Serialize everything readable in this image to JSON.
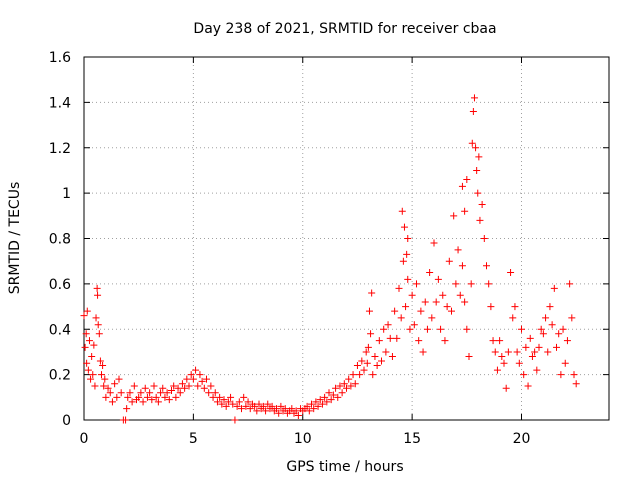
{
  "chart_data": {
    "type": "scatter",
    "title": "Day 238 of 2021, SRMTID for receiver cbaa",
    "xlabel": "GPS time / hours",
    "ylabel": "SRMTID / TECUs",
    "xlim": [
      0,
      24
    ],
    "ylim": [
      0,
      1.6
    ],
    "grid": true,
    "marker": "+",
    "color": "#ff0000",
    "x_ticks": [
      0,
      5,
      10,
      15,
      20
    ],
    "x_tick_labels": [
      "0",
      "5",
      "10",
      "15",
      "20"
    ],
    "y_ticks": [
      0,
      0.2,
      0.4,
      0.6,
      0.8,
      1.0,
      1.2,
      1.4,
      1.6
    ],
    "y_tick_labels": [
      "0",
      "0.2",
      "0.4",
      "0.6",
      "0.8",
      "1",
      "1.2",
      "1.4",
      "1.6"
    ],
    "series": [
      {
        "name": "SRMTID",
        "points": [
          [
            0.0,
            0.46
          ],
          [
            0.05,
            0.32
          ],
          [
            0.1,
            0.38
          ],
          [
            0.12,
            0.25
          ],
          [
            0.15,
            0.48
          ],
          [
            0.2,
            0.22
          ],
          [
            0.25,
            0.35
          ],
          [
            0.3,
            0.18
          ],
          [
            0.35,
            0.28
          ],
          [
            0.4,
            0.2
          ],
          [
            0.45,
            0.33
          ],
          [
            0.5,
            0.15
          ],
          [
            0.55,
            0.45
          ],
          [
            0.6,
            0.58
          ],
          [
            0.62,
            0.55
          ],
          [
            0.65,
            0.42
          ],
          [
            0.7,
            0.38
          ],
          [
            0.75,
            0.26
          ],
          [
            0.8,
            0.2
          ],
          [
            0.85,
            0.24
          ],
          [
            0.9,
            0.15
          ],
          [
            0.95,
            0.18
          ],
          [
            1.0,
            0.1
          ],
          [
            1.1,
            0.14
          ],
          [
            1.2,
            0.12
          ],
          [
            1.3,
            0.08
          ],
          [
            1.4,
            0.16
          ],
          [
            1.5,
            0.1
          ],
          [
            1.6,
            0.18
          ],
          [
            1.7,
            0.12
          ],
          [
            1.8,
            0.0
          ],
          [
            1.9,
            0.0
          ],
          [
            1.95,
            0.05
          ],
          [
            2.0,
            0.1
          ],
          [
            2.1,
            0.12
          ],
          [
            2.2,
            0.08
          ],
          [
            2.3,
            0.15
          ],
          [
            2.4,
            0.09
          ],
          [
            2.5,
            0.1
          ],
          [
            2.6,
            0.12
          ],
          [
            2.7,
            0.08
          ],
          [
            2.8,
            0.14
          ],
          [
            2.9,
            0.1
          ],
          [
            3.0,
            0.12
          ],
          [
            3.1,
            0.09
          ],
          [
            3.2,
            0.15
          ],
          [
            3.3,
            0.1
          ],
          [
            3.4,
            0.08
          ],
          [
            3.5,
            0.12
          ],
          [
            3.6,
            0.14
          ],
          [
            3.7,
            0.1
          ],
          [
            3.8,
            0.12
          ],
          [
            3.9,
            0.09
          ],
          [
            4.0,
            0.13
          ],
          [
            4.1,
            0.15
          ],
          [
            4.2,
            0.1
          ],
          [
            4.3,
            0.14
          ],
          [
            4.4,
            0.12
          ],
          [
            4.5,
            0.16
          ],
          [
            4.6,
            0.14
          ],
          [
            4.7,
            0.18
          ],
          [
            4.8,
            0.15
          ],
          [
            4.9,
            0.2
          ],
          [
            5.0,
            0.18
          ],
          [
            5.1,
            0.22
          ],
          [
            5.2,
            0.15
          ],
          [
            5.3,
            0.2
          ],
          [
            5.4,
            0.17
          ],
          [
            5.5,
            0.14
          ],
          [
            5.6,
            0.18
          ],
          [
            5.7,
            0.12
          ],
          [
            5.8,
            0.15
          ],
          [
            5.9,
            0.1
          ],
          [
            6.0,
            0.12
          ],
          [
            6.1,
            0.08
          ],
          [
            6.2,
            0.1
          ],
          [
            6.3,
            0.07
          ],
          [
            6.4,
            0.09
          ],
          [
            6.5,
            0.06
          ],
          [
            6.6,
            0.08
          ],
          [
            6.7,
            0.1
          ],
          [
            6.8,
            0.07
          ],
          [
            6.9,
            0.0
          ],
          [
            7.0,
            0.06
          ],
          [
            7.1,
            0.08
          ],
          [
            7.2,
            0.05
          ],
          [
            7.3,
            0.1
          ],
          [
            7.4,
            0.06
          ],
          [
            7.5,
            0.08
          ],
          [
            7.6,
            0.05
          ],
          [
            7.7,
            0.07
          ],
          [
            7.8,
            0.06
          ],
          [
            7.9,
            0.04
          ],
          [
            8.0,
            0.07
          ],
          [
            8.1,
            0.05
          ],
          [
            8.2,
            0.06
          ],
          [
            8.3,
            0.04
          ],
          [
            8.4,
            0.07
          ],
          [
            8.5,
            0.05
          ],
          [
            8.6,
            0.06
          ],
          [
            8.7,
            0.04
          ],
          [
            8.8,
            0.05
          ],
          [
            8.9,
            0.03
          ],
          [
            9.0,
            0.06
          ],
          [
            9.1,
            0.04
          ],
          [
            9.2,
            0.05
          ],
          [
            9.3,
            0.03
          ],
          [
            9.4,
            0.04
          ],
          [
            9.5,
            0.05
          ],
          [
            9.6,
            0.03
          ],
          [
            9.7,
            0.04
          ],
          [
            9.8,
            0.02
          ],
          [
            9.9,
            0.05
          ],
          [
            10.0,
            0.04
          ],
          [
            10.1,
            0.05
          ],
          [
            10.2,
            0.06
          ],
          [
            10.3,
            0.04
          ],
          [
            10.4,
            0.07
          ],
          [
            10.5,
            0.05
          ],
          [
            10.6,
            0.08
          ],
          [
            10.7,
            0.06
          ],
          [
            10.8,
            0.09
          ],
          [
            10.9,
            0.07
          ],
          [
            11.0,
            0.1
          ],
          [
            11.1,
            0.08
          ],
          [
            11.2,
            0.12
          ],
          [
            11.3,
            0.09
          ],
          [
            11.4,
            0.11
          ],
          [
            11.5,
            0.14
          ],
          [
            11.6,
            0.1
          ],
          [
            11.7,
            0.15
          ],
          [
            11.8,
            0.12
          ],
          [
            11.9,
            0.16
          ],
          [
            12.0,
            0.14
          ],
          [
            12.1,
            0.18
          ],
          [
            12.2,
            0.15
          ],
          [
            12.3,
            0.2
          ],
          [
            12.4,
            0.16
          ],
          [
            12.5,
            0.24
          ],
          [
            12.6,
            0.2
          ],
          [
            12.7,
            0.26
          ],
          [
            12.8,
            0.22
          ],
          [
            12.9,
            0.3
          ],
          [
            12.95,
            0.25
          ],
          [
            13.0,
            0.32
          ],
          [
            13.05,
            0.48
          ],
          [
            13.1,
            0.38
          ],
          [
            13.15,
            0.56
          ],
          [
            13.2,
            0.2
          ],
          [
            13.3,
            0.28
          ],
          [
            13.4,
            0.24
          ],
          [
            13.5,
            0.35
          ],
          [
            13.6,
            0.26
          ],
          [
            13.7,
            0.4
          ],
          [
            13.8,
            0.3
          ],
          [
            13.9,
            0.42
          ],
          [
            14.0,
            0.36
          ],
          [
            14.1,
            0.28
          ],
          [
            14.2,
            0.48
          ],
          [
            14.3,
            0.36
          ],
          [
            14.4,
            0.58
          ],
          [
            14.5,
            0.45
          ],
          [
            14.6,
            0.7
          ],
          [
            14.7,
            0.5
          ],
          [
            14.8,
            0.62
          ],
          [
            14.9,
            0.4
          ],
          [
            14.55,
            0.92
          ],
          [
            14.65,
            0.85
          ],
          [
            14.8,
            0.8
          ],
          [
            14.75,
            0.73
          ],
          [
            15.0,
            0.55
          ],
          [
            15.1,
            0.42
          ],
          [
            15.2,
            0.6
          ],
          [
            15.3,
            0.35
          ],
          [
            15.4,
            0.48
          ],
          [
            15.5,
            0.3
          ],
          [
            15.6,
            0.52
          ],
          [
            15.7,
            0.4
          ],
          [
            15.8,
            0.65
          ],
          [
            15.9,
            0.45
          ],
          [
            16.0,
            0.78
          ],
          [
            16.1,
            0.52
          ],
          [
            16.2,
            0.62
          ],
          [
            16.3,
            0.4
          ],
          [
            16.4,
            0.55
          ],
          [
            16.5,
            0.35
          ],
          [
            16.6,
            0.5
          ],
          [
            16.7,
            0.7
          ],
          [
            16.8,
            0.48
          ],
          [
            16.9,
            0.9
          ],
          [
            17.0,
            0.6
          ],
          [
            17.1,
            0.75
          ],
          [
            17.2,
            0.55
          ],
          [
            17.3,
            0.68
          ],
          [
            17.4,
            0.52
          ],
          [
            17.5,
            0.4
          ],
          [
            17.6,
            0.28
          ],
          [
            17.7,
            0.6
          ],
          [
            17.75,
            1.22
          ],
          [
            17.8,
            1.36
          ],
          [
            17.85,
            1.42
          ],
          [
            17.9,
            1.2
          ],
          [
            17.95,
            1.1
          ],
          [
            18.0,
            1.0
          ],
          [
            18.05,
            1.16
          ],
          [
            18.1,
            0.88
          ],
          [
            18.2,
            0.95
          ],
          [
            18.3,
            0.8
          ],
          [
            18.4,
            0.68
          ],
          [
            18.5,
            0.6
          ],
          [
            18.6,
            0.5
          ],
          [
            18.7,
            0.35
          ],
          [
            17.3,
            1.03
          ],
          [
            17.4,
            0.92
          ],
          [
            17.5,
            1.06
          ],
          [
            18.8,
            0.3
          ],
          [
            18.9,
            0.22
          ],
          [
            19.0,
            0.35
          ],
          [
            19.1,
            0.28
          ],
          [
            19.2,
            0.25
          ],
          [
            19.3,
            0.14
          ],
          [
            19.4,
            0.3
          ],
          [
            19.5,
            0.65
          ],
          [
            19.6,
            0.45
          ],
          [
            19.7,
            0.5
          ],
          [
            19.8,
            0.3
          ],
          [
            19.9,
            0.25
          ],
          [
            20.0,
            0.4
          ],
          [
            20.1,
            0.2
          ],
          [
            20.2,
            0.32
          ],
          [
            20.3,
            0.15
          ],
          [
            20.4,
            0.36
          ],
          [
            20.5,
            0.28
          ],
          [
            20.6,
            0.3
          ],
          [
            20.7,
            0.22
          ],
          [
            20.8,
            0.32
          ],
          [
            20.9,
            0.4
          ],
          [
            21.0,
            0.38
          ],
          [
            21.1,
            0.45
          ],
          [
            21.2,
            0.3
          ],
          [
            21.3,
            0.5
          ],
          [
            21.4,
            0.42
          ],
          [
            21.5,
            0.58
          ],
          [
            21.6,
            0.32
          ],
          [
            21.7,
            0.38
          ],
          [
            21.8,
            0.2
          ],
          [
            21.9,
            0.4
          ],
          [
            22.0,
            0.25
          ],
          [
            22.1,
            0.35
          ],
          [
            22.2,
            0.6
          ],
          [
            22.3,
            0.45
          ],
          [
            22.4,
            0.2
          ],
          [
            22.5,
            0.16
          ]
        ]
      }
    ]
  }
}
